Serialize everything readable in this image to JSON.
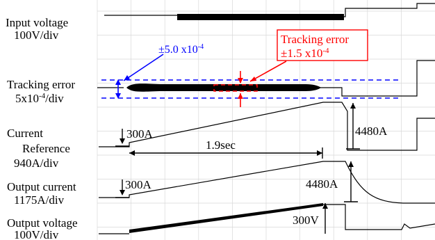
{
  "chart_data": {
    "type": "line",
    "title": "",
    "channels": [
      {
        "label": "Input voltage",
        "scale": "100V/div"
      },
      {
        "label": "Tracking error",
        "scale": "5x10-4/div"
      },
      {
        "label": "Current",
        "label2": "Reference",
        "scale": "940A/div"
      },
      {
        "label": "Output current",
        "scale": "1175A/div"
      },
      {
        "label": "Output voltage",
        "scale": "100V/div"
      }
    ],
    "annotations": {
      "blue_band": "±5.0 x10-4",
      "red_error_line1": "Tracking error",
      "red_error_line2": "±1.5 x10-4",
      "ref_step": "300A",
      "ramp_duration": "1.9sec",
      "ref_peak": "4480A",
      "out_step": "300A",
      "out_peak": "4480A",
      "voltage_step": "300V"
    },
    "colors": {
      "band": "#0000ff",
      "error": "#ff0000",
      "trace": "#000000",
      "grid": "#d8d8d8"
    }
  }
}
